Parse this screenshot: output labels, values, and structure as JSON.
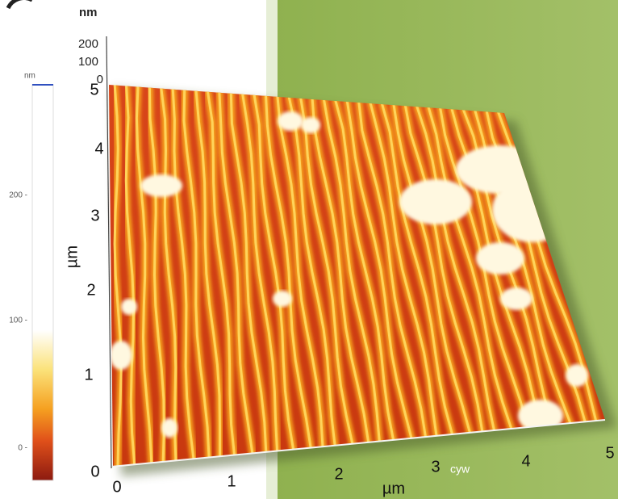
{
  "z_axis": {
    "unit": "nm",
    "ticks": [
      "200",
      "100",
      "0"
    ]
  },
  "colorbar": {
    "unit": "nm",
    "ticks": [
      "200 -",
      "100 -",
      "0 -"
    ]
  },
  "y_axis": {
    "label": "µm",
    "ticks": [
      "0",
      "1",
      "2",
      "3",
      "4",
      "5"
    ]
  },
  "x_axis": {
    "label": "µm",
    "ticks": [
      "0",
      "1",
      "2",
      "3",
      "4",
      "5"
    ]
  },
  "watermark": "cyw"
}
